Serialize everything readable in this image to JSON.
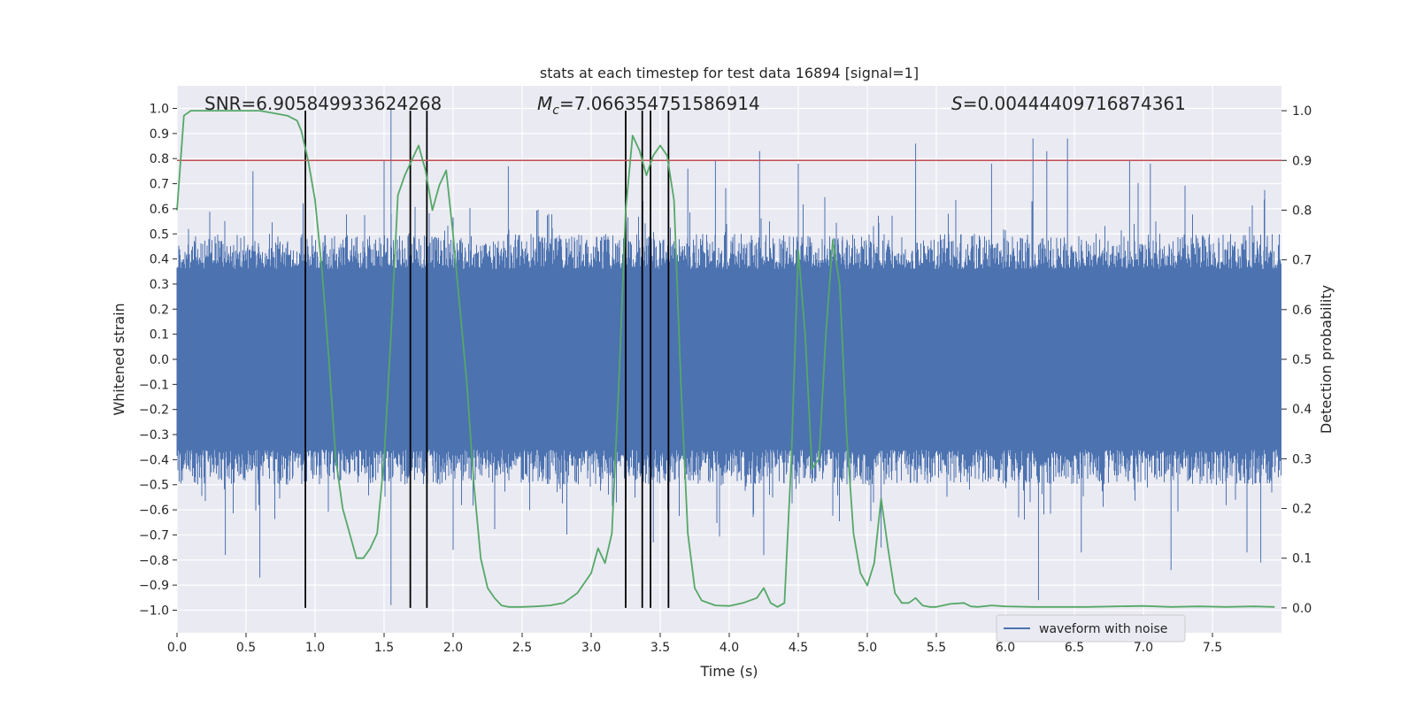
{
  "chart_data": {
    "type": "line",
    "title": "stats at each timestep for test data 16894 [signal=1]",
    "xlabel": "Time (s)",
    "ylabel": "Whitened strain",
    "y2label": "Detection probability",
    "xlim": [
      0,
      8
    ],
    "ylim": [
      -1.09,
      1.09
    ],
    "y2lim": [
      -0.05,
      1.05
    ],
    "xticks": [
      0.0,
      0.5,
      1.0,
      1.5,
      2.0,
      2.5,
      3.0,
      3.5,
      4.0,
      4.5,
      5.0,
      5.5,
      6.0,
      6.5,
      7.0,
      7.5
    ],
    "xtick_labels": [
      "0.0",
      "0.5",
      "1.0",
      "1.5",
      "2.0",
      "2.5",
      "3.0",
      "3.5",
      "4.0",
      "4.5",
      "5.0",
      "5.5",
      "6.0",
      "6.5",
      "7.0",
      "7.5"
    ],
    "yticks": [
      -1.0,
      -0.9,
      -0.8,
      -0.7,
      -0.6,
      -0.5,
      -0.4,
      -0.3,
      -0.2,
      -0.1,
      0.0,
      0.1,
      0.2,
      0.3,
      0.4,
      0.5,
      0.6,
      0.7,
      0.8,
      0.9,
      1.0
    ],
    "ytick_labels": [
      "−1.0",
      "−0.9",
      "−0.8",
      "−0.7",
      "−0.6",
      "−0.5",
      "−0.4",
      "−0.3",
      "−0.2",
      "−0.1",
      "0.0",
      "0.1",
      "0.2",
      "0.3",
      "0.4",
      "0.5",
      "0.6",
      "0.7",
      "0.8",
      "0.9",
      "1.0"
    ],
    "y2ticks": [
      0.0,
      0.1,
      0.2,
      0.3,
      0.4,
      0.5,
      0.6,
      0.7,
      0.8,
      0.9,
      1.0
    ],
    "y2tick_labels": [
      "0.0",
      "0.1",
      "0.2",
      "0.3",
      "0.4",
      "0.5",
      "0.6",
      "0.7",
      "0.8",
      "0.9",
      "1.0"
    ],
    "grid": true,
    "legend": {
      "position": "lower-right",
      "entries": [
        "waveform with noise"
      ]
    },
    "annotations": {
      "snr": "SNR=6.905849933624268",
      "mc_symbol": "M",
      "mc_sub": "c",
      "mc_value": "=7.066354751586914",
      "s_symbol": "S",
      "s_value": "=0.00444409716874361"
    },
    "threshold": 0.9,
    "threshold_axis": "y2",
    "event_times": [
      0.93,
      1.69,
      1.81,
      3.25,
      3.37,
      3.43,
      3.56
    ],
    "waveform": {
      "name": "waveform with noise",
      "color": "#4c72b0",
      "t_start": 0.0,
      "t_end": 8.0,
      "core_amplitude": 0.36,
      "typical_extreme": 0.5,
      "spikes": [
        [
          1.55,
          1.0
        ],
        [
          1.55,
          -0.98
        ],
        [
          6.24,
          -0.96
        ],
        [
          5.35,
          0.86
        ],
        [
          6.2,
          0.88
        ],
        [
          6.45,
          0.88
        ],
        [
          6.3,
          0.83
        ],
        [
          4.22,
          0.83
        ],
        [
          0.6,
          -0.87
        ],
        [
          7.2,
          -0.84
        ],
        [
          7.85,
          -0.81
        ],
        [
          1.5,
          0.79
        ],
        [
          3.9,
          0.79
        ],
        [
          6.9,
          0.79
        ],
        [
          4.5,
          0.78
        ],
        [
          5.9,
          0.78
        ],
        [
          0.35,
          -0.78
        ],
        [
          0.55,
          0.75
        ],
        [
          2.4,
          0.77
        ],
        [
          3.7,
          0.76
        ],
        [
          4.25,
          -0.78
        ],
        [
          7.05,
          0.78
        ],
        [
          7.75,
          -0.77
        ],
        [
          5.1,
          -0.75
        ],
        [
          2.0,
          -0.76
        ],
        [
          6.55,
          -0.77
        ],
        [
          3.45,
          -0.73
        ]
      ]
    },
    "detection_probability": {
      "color": "#55a868",
      "x": [
        0.0,
        0.05,
        0.1,
        0.2,
        0.3,
        0.4,
        0.5,
        0.6,
        0.7,
        0.8,
        0.87,
        0.9,
        0.95,
        1.0,
        1.05,
        1.1,
        1.15,
        1.2,
        1.25,
        1.3,
        1.35,
        1.4,
        1.45,
        1.5,
        1.55,
        1.6,
        1.65,
        1.7,
        1.75,
        1.8,
        1.85,
        1.9,
        1.95,
        2.0,
        2.05,
        2.1,
        2.15,
        2.2,
        2.25,
        2.3,
        2.35,
        2.4,
        2.5,
        2.6,
        2.7,
        2.8,
        2.9,
        3.0,
        3.05,
        3.1,
        3.15,
        3.2,
        3.25,
        3.3,
        3.35,
        3.4,
        3.45,
        3.5,
        3.55,
        3.6,
        3.65,
        3.7,
        3.75,
        3.8,
        3.9,
        4.0,
        4.1,
        4.2,
        4.25,
        4.3,
        4.35,
        4.4,
        4.45,
        4.5,
        4.55,
        4.6,
        4.65,
        4.7,
        4.75,
        4.8,
        4.85,
        4.9,
        4.95,
        5.0,
        5.05,
        5.1,
        5.15,
        5.2,
        5.25,
        5.3,
        5.35,
        5.4,
        5.45,
        5.5,
        5.6,
        5.7,
        5.75,
        5.8,
        5.9,
        6.0,
        6.2,
        6.4,
        6.6,
        6.8,
        7.0,
        7.2,
        7.4,
        7.6,
        7.8,
        7.95
      ],
      "y": [
        0.8,
        0.99,
        1.0,
        1.0,
        1.0,
        1.0,
        1.0,
        1.0,
        0.995,
        0.99,
        0.98,
        0.96,
        0.9,
        0.82,
        0.68,
        0.5,
        0.3,
        0.2,
        0.15,
        0.1,
        0.1,
        0.12,
        0.15,
        0.3,
        0.55,
        0.83,
        0.87,
        0.9,
        0.93,
        0.88,
        0.8,
        0.85,
        0.88,
        0.75,
        0.6,
        0.45,
        0.25,
        0.1,
        0.04,
        0.02,
        0.005,
        0.002,
        0.002,
        0.003,
        0.005,
        0.01,
        0.03,
        0.07,
        0.12,
        0.09,
        0.15,
        0.45,
        0.8,
        0.95,
        0.92,
        0.87,
        0.91,
        0.93,
        0.91,
        0.82,
        0.45,
        0.15,
        0.04,
        0.015,
        0.005,
        0.004,
        0.01,
        0.02,
        0.04,
        0.01,
        0.002,
        0.01,
        0.3,
        0.72,
        0.55,
        0.28,
        0.3,
        0.55,
        0.74,
        0.65,
        0.35,
        0.15,
        0.07,
        0.045,
        0.09,
        0.22,
        0.12,
        0.03,
        0.01,
        0.01,
        0.02,
        0.005,
        0.002,
        0.002,
        0.008,
        0.01,
        0.003,
        0.002,
        0.005,
        0.003,
        0.002,
        0.002,
        0.002,
        0.003,
        0.004,
        0.002,
        0.003,
        0.002,
        0.003,
        0.002
      ]
    }
  }
}
